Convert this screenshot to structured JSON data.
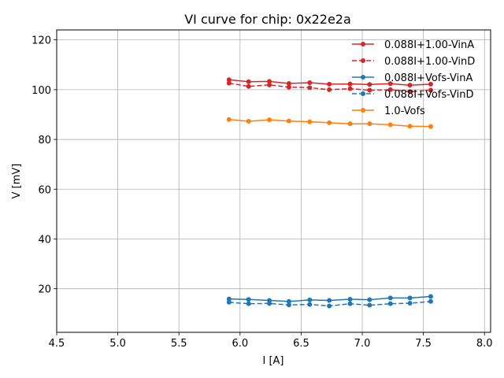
{
  "chart_data": {
    "type": "line",
    "title": "VI curve for chip: 0x22e2a",
    "xlabel": "I [A]",
    "ylabel": "V [mV]",
    "xlim": [
      4.5,
      8.05
    ],
    "ylim": [
      2.5,
      124
    ],
    "xticks": [
      4.5,
      5.0,
      5.5,
      6.0,
      6.5,
      7.0,
      7.5,
      8.0
    ],
    "xtick_labels": [
      "4.5",
      "5.0",
      "5.5",
      "6.0",
      "6.5",
      "7.0",
      "7.5",
      "8.0"
    ],
    "yticks": [
      20,
      40,
      60,
      80,
      100,
      120
    ],
    "ytick_labels": [
      "20",
      "40",
      "60",
      "80",
      "100",
      "120"
    ],
    "grid": true,
    "legend_position": "top-right",
    "x": [
      5.91,
      6.07,
      6.24,
      6.4,
      6.57,
      6.73,
      6.9,
      7.06,
      7.23,
      7.39,
      7.56
    ],
    "series": [
      {
        "name": "0.088I+1.00-VinA",
        "color": "#d62728",
        "dashed": false,
        "values": [
          104.0,
          103.2,
          103.3,
          102.5,
          102.8,
          102.2,
          102.3,
          102.1,
          102.4,
          101.8,
          102.2
        ]
      },
      {
        "name": "0.088I+1.00-VinD",
        "color": "#d62728",
        "dashed": true,
        "values": [
          102.6,
          101.3,
          101.9,
          101.0,
          100.8,
          100.0,
          100.4,
          99.8,
          100.0,
          99.2,
          99.8
        ]
      },
      {
        "name": "0.088I+Vofs-VinA",
        "color": "#1f77b4",
        "dashed": false,
        "values": [
          15.9,
          15.7,
          15.3,
          14.9,
          15.5,
          15.3,
          15.8,
          15.6,
          16.3,
          16.3,
          16.9
        ]
      },
      {
        "name": "0.088I+Vofs-VinD",
        "color": "#1f77b4",
        "dashed": true,
        "values": [
          14.6,
          14.0,
          14.1,
          13.5,
          13.7,
          13.1,
          14.0,
          13.4,
          14.0,
          14.2,
          14.9
        ]
      },
      {
        "name": "1.0-Vofs",
        "color": "#ff7f0e",
        "dashed": false,
        "values": [
          88.0,
          87.3,
          87.9,
          87.4,
          87.1,
          86.7,
          86.3,
          86.3,
          85.9,
          85.3,
          85.2
        ]
      }
    ]
  }
}
